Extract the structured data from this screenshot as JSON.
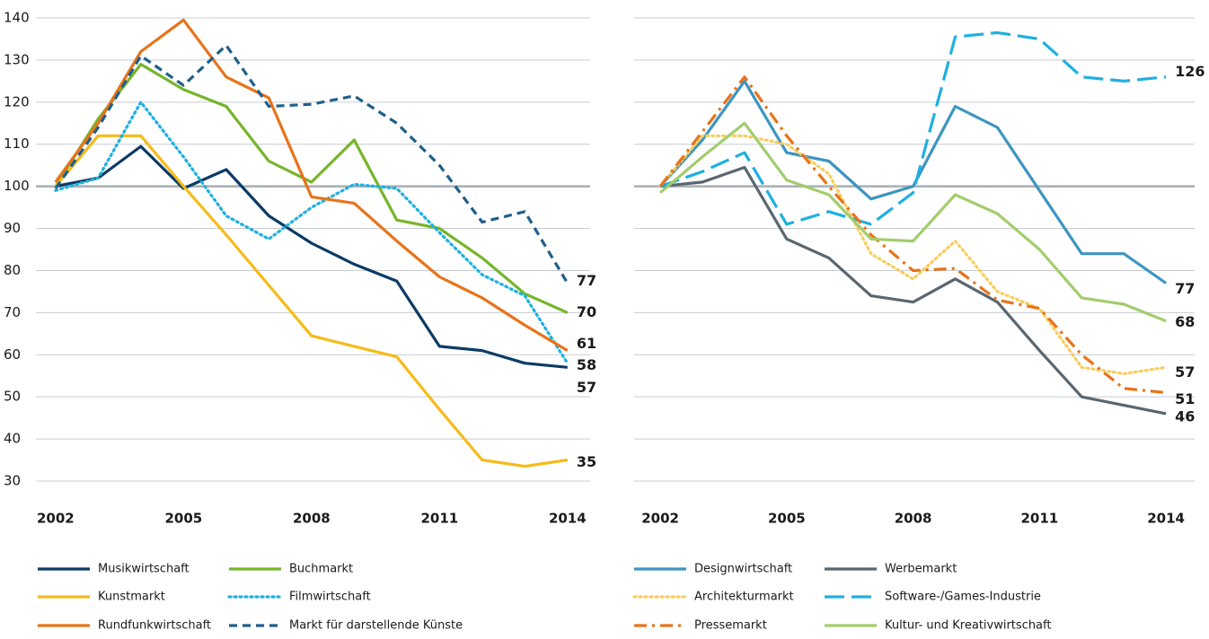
{
  "chart_data": [
    {
      "type": "line",
      "x": [
        2002,
        2003,
        2004,
        2005,
        2006,
        2007,
        2008,
        2009,
        2010,
        2011,
        2012,
        2013,
        2014
      ],
      "xlim": [
        2001.54,
        2014.53
      ],
      "xticks": [
        2002,
        2005,
        2008,
        2011,
        2014
      ],
      "ylim": [
        30,
        140
      ],
      "yticks": [
        30,
        40,
        50,
        60,
        70,
        80,
        90,
        100,
        110,
        120,
        130,
        140
      ],
      "grid": true,
      "highlight_ytick": 100,
      "show_ytick_labels": true,
      "series": [
        {
          "name": "Musikwirtschaft",
          "color": "#0b3b66",
          "style": "solid",
          "values": [
            100,
            102,
            109.5,
            99.5,
            104,
            93,
            86.5,
            81.5,
            77.5,
            62,
            61,
            58,
            57
          ]
        },
        {
          "name": "Buchmarkt",
          "color": "#76b52a",
          "style": "solid",
          "values": [
            100,
            116,
            129,
            123,
            119,
            106,
            101,
            111,
            92,
            90,
            83,
            74.5,
            70
          ]
        },
        {
          "name": "Kunstmarkt",
          "color": "#f5bb1a",
          "style": "solid",
          "values": [
            100,
            112,
            112,
            100,
            88.5,
            76.5,
            64.5,
            62,
            59.5,
            47,
            35,
            33.5,
            35
          ]
        },
        {
          "name": "Filmwirtschaft",
          "color": "#1fb0e0",
          "style": "dotted",
          "values": [
            99,
            102,
            120,
            107,
            93,
            87.5,
            95,
            100.5,
            99.5,
            89,
            79,
            74,
            58
          ]
        },
        {
          "name": "Rundfunkwirtschaft",
          "color": "#e8731a",
          "style": "solid",
          "values": [
            101,
            115,
            132,
            139.5,
            126,
            121,
            97.5,
            96,
            87,
            78.5,
            73.5,
            67,
            61
          ]
        },
        {
          "name": "Markt für darstellende Künste",
          "color": "#1f5f8b",
          "style": "dashed",
          "values": [
            99.5,
            114,
            131,
            124,
            133.5,
            119,
            119.5,
            121.5,
            115,
            105,
            91.5,
            94,
            77
          ]
        }
      ]
    },
    {
      "type": "line",
      "x": [
        2002,
        2003,
        2004,
        2005,
        2006,
        2007,
        2008,
        2009,
        2010,
        2011,
        2012,
        2013,
        2014
      ],
      "xlim": [
        2001.38,
        2014.68
      ],
      "xticks": [
        2002,
        2005,
        2008,
        2011,
        2014
      ],
      "ylim": [
        30,
        140
      ],
      "yticks": [
        30,
        40,
        50,
        60,
        70,
        80,
        90,
        100,
        110,
        120,
        130,
        140
      ],
      "grid": true,
      "highlight_ytick": 100,
      "show_ytick_labels": false,
      "series": [
        {
          "name": "Designwirtschaft",
          "color": "#3d95c0",
          "style": "solid",
          "values": [
            100,
            111,
            125,
            108,
            106,
            97,
            100,
            119,
            114,
            99,
            84,
            84,
            77
          ]
        },
        {
          "name": "Werbemarkt",
          "color": "#5a6670",
          "style": "solid",
          "values": [
            100,
            101,
            104.5,
            87.5,
            83,
            74,
            72.5,
            78,
            72.5,
            61,
            50,
            48,
            46
          ]
        },
        {
          "name": "Architekturmarkt",
          "color": "#f9cd5c",
          "style": "dotted",
          "values": [
            100,
            112,
            112,
            110,
            103,
            84,
            78,
            87,
            75,
            71,
            57,
            55.5,
            57
          ]
        },
        {
          "name": "Software-/Games-Industrie",
          "color": "#1fb0e0",
          "style": "longdash",
          "values": [
            100,
            103.5,
            108,
            91,
            94,
            91,
            98.5,
            135.5,
            136.5,
            135,
            126,
            125,
            126
          ]
        },
        {
          "name": "Pressemarkt",
          "color": "#e8731a",
          "style": "dashdot",
          "values": [
            100,
            113,
            126,
            112,
            100,
            88.5,
            80,
            80.5,
            73,
            71,
            60,
            52,
            51
          ]
        },
        {
          "name": "Kultur- und Kreativwirtschaft",
          "color": "#a3cc6e",
          "style": "solid",
          "values": [
            98.5,
            107,
            115,
            101.5,
            98,
            87.5,
            87,
            98,
            93.5,
            85,
            73.5,
            72,
            68
          ]
        }
      ]
    }
  ]
}
